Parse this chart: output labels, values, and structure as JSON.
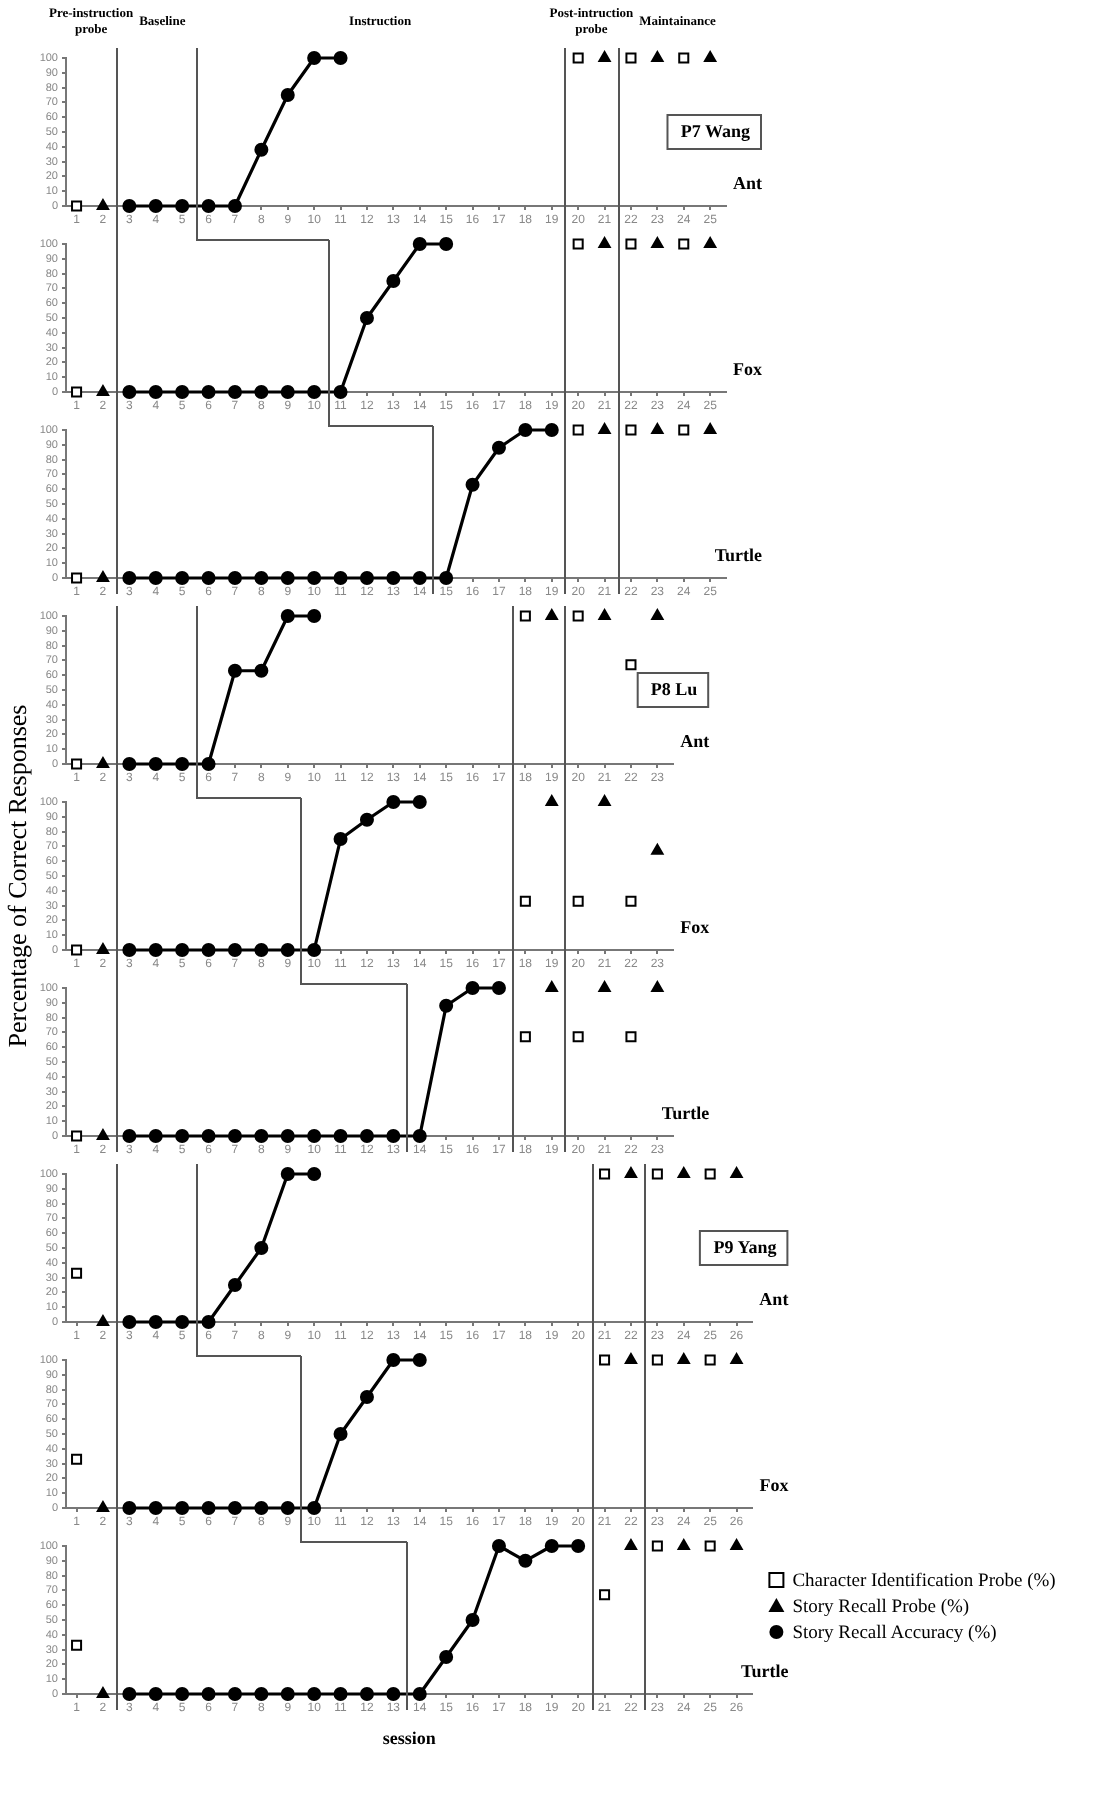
{
  "chart_data": [
    {
      "type": "line",
      "title": "P7 Wang",
      "xlim": [
        0.6,
        25.6
      ],
      "xticks": [
        1,
        2,
        3,
        4,
        5,
        6,
        7,
        8,
        9,
        10,
        11,
        12,
        13,
        14,
        15,
        16,
        17,
        18,
        19,
        20,
        21,
        22,
        23,
        24,
        25
      ],
      "ylim": [
        0,
        100
      ],
      "yticks": [
        0,
        10,
        20,
        30,
        40,
        50,
        60,
        70,
        80,
        90,
        100
      ],
      "grid": false,
      "ref_lines": [
        {
          "axis": "x",
          "value": 2.5
        },
        {
          "axis": "x",
          "value": 5.5
        },
        {
          "axis": "x",
          "value": 19.5
        },
        {
          "axis": "x",
          "value": 21.5
        }
      ],
      "annotations": [
        "Pre-instruction probe",
        "Baseline",
        "Instruction",
        "Post-intruction probe",
        "Maintainance",
        "Ant"
      ],
      "series": [
        {
          "type": "line",
          "marker": "circle",
          "color": "#000000",
          "x": [
            3,
            4,
            5,
            6,
            7,
            8,
            9,
            10,
            11
          ],
          "values": [
            0,
            0,
            0,
            0,
            0,
            38,
            75,
            100,
            100
          ]
        },
        {
          "type": "scatter",
          "marker": "square",
          "color": "#000000",
          "x": [
            1,
            20,
            22,
            24
          ],
          "values": [
            0,
            100,
            100,
            100
          ]
        },
        {
          "type": "scatter",
          "marker": "triangle",
          "color": "#000000",
          "x": [
            2,
            21,
            23,
            25
          ],
          "values": [
            0,
            100,
            100,
            100
          ]
        }
      ]
    },
    {
      "type": "line",
      "xlim": [
        0.6,
        25.6
      ],
      "xticks": [
        1,
        2,
        3,
        4,
        5,
        6,
        7,
        8,
        9,
        10,
        11,
        12,
        13,
        14,
        15,
        16,
        17,
        18,
        19,
        20,
        21,
        22,
        23,
        24,
        25
      ],
      "ylim": [
        0,
        100
      ],
      "yticks": [
        0,
        10,
        20,
        30,
        40,
        50,
        60,
        70,
        80,
        90,
        100
      ],
      "grid": false,
      "ref_lines": [
        {
          "axis": "x",
          "value": 2.5
        },
        {
          "axis": "x",
          "value": 10.5
        },
        {
          "axis": "x",
          "value": 19.5
        },
        {
          "axis": "x",
          "value": 21.5
        }
      ],
      "annotations": [
        "Fox"
      ],
      "series": [
        {
          "type": "line",
          "marker": "circle",
          "color": "#000000",
          "x": [
            3,
            4,
            5,
            6,
            7,
            8,
            9,
            10,
            11,
            12,
            13,
            14,
            15
          ],
          "values": [
            0,
            0,
            0,
            0,
            0,
            0,
            0,
            0,
            0,
            50,
            75,
            100,
            100
          ]
        },
        {
          "type": "scatter",
          "marker": "square",
          "color": "#000000",
          "x": [
            1,
            20,
            22,
            24
          ],
          "values": [
            0,
            100,
            100,
            100
          ]
        },
        {
          "type": "scatter",
          "marker": "triangle",
          "color": "#000000",
          "x": [
            2,
            21,
            23,
            25
          ],
          "values": [
            0,
            100,
            100,
            100
          ]
        }
      ]
    },
    {
      "type": "line",
      "xlim": [
        0.6,
        25.6
      ],
      "xticks": [
        1,
        2,
        3,
        4,
        5,
        6,
        7,
        8,
        9,
        10,
        11,
        12,
        13,
        14,
        15,
        16,
        17,
        18,
        19,
        20,
        21,
        22,
        23,
        24,
        25
      ],
      "ylim": [
        0,
        100
      ],
      "yticks": [
        0,
        10,
        20,
        30,
        40,
        50,
        60,
        70,
        80,
        90,
        100
      ],
      "grid": false,
      "ref_lines": [
        {
          "axis": "x",
          "value": 2.5
        },
        {
          "axis": "x",
          "value": 14.5
        },
        {
          "axis": "x",
          "value": 19.5
        },
        {
          "axis": "x",
          "value": 21.5
        }
      ],
      "annotations": [
        "Turtle"
      ],
      "series": [
        {
          "type": "line",
          "marker": "circle",
          "color": "#000000",
          "x": [
            3,
            4,
            5,
            6,
            7,
            8,
            9,
            10,
            11,
            12,
            13,
            14,
            15,
            16,
            17,
            18,
            19
          ],
          "values": [
            0,
            0,
            0,
            0,
            0,
            0,
            0,
            0,
            0,
            0,
            0,
            0,
            0,
            63,
            88,
            100,
            100
          ]
        },
        {
          "type": "scatter",
          "marker": "square",
          "color": "#000000",
          "x": [
            1,
            20,
            22,
            24
          ],
          "values": [
            0,
            100,
            100,
            100
          ]
        },
        {
          "type": "scatter",
          "marker": "triangle",
          "color": "#000000",
          "x": [
            2,
            21,
            23,
            25
          ],
          "values": [
            0,
            100,
            100,
            100
          ]
        }
      ]
    },
    {
      "type": "line",
      "title": "P8 Lu",
      "xlim": [
        0.6,
        23.6
      ],
      "xticks": [
        1,
        2,
        3,
        4,
        5,
        6,
        7,
        8,
        9,
        10,
        11,
        12,
        13,
        14,
        15,
        16,
        17,
        18,
        19,
        20,
        21,
        22,
        23
      ],
      "ylim": [
        0,
        100
      ],
      "yticks": [
        0,
        10,
        20,
        30,
        40,
        50,
        60,
        70,
        80,
        90,
        100
      ],
      "grid": false,
      "ref_lines": [
        {
          "axis": "x",
          "value": 2.5
        },
        {
          "axis": "x",
          "value": 5.5
        },
        {
          "axis": "x",
          "value": 17.5
        },
        {
          "axis": "x",
          "value": 19.5
        }
      ],
      "annotations": [
        "Ant"
      ],
      "series": [
        {
          "type": "line",
          "marker": "circle",
          "color": "#000000",
          "x": [
            3,
            4,
            5,
            6,
            7,
            8,
            9,
            10
          ],
          "values": [
            0,
            0,
            0,
            0,
            63,
            63,
            100,
            100
          ]
        },
        {
          "type": "scatter",
          "marker": "square",
          "color": "#000000",
          "x": [
            1,
            18,
            20,
            22
          ],
          "values": [
            0,
            100,
            100,
            67
          ]
        },
        {
          "type": "scatter",
          "marker": "triangle",
          "color": "#000000",
          "x": [
            2,
            19,
            21,
            23
          ],
          "values": [
            0,
            100,
            100,
            100
          ]
        }
      ]
    },
    {
      "type": "line",
      "ylabel": "Percentage of Correct Responses",
      "xlim": [
        0.6,
        23.6
      ],
      "xticks": [
        1,
        2,
        3,
        4,
        5,
        6,
        7,
        8,
        9,
        10,
        11,
        12,
        13,
        14,
        15,
        16,
        17,
        18,
        19,
        20,
        21,
        22,
        23
      ],
      "ylim": [
        0,
        100
      ],
      "yticks": [
        0,
        10,
        20,
        30,
        40,
        50,
        60,
        70,
        80,
        90,
        100
      ],
      "grid": false,
      "ref_lines": [
        {
          "axis": "x",
          "value": 2.5
        },
        {
          "axis": "x",
          "value": 9.5
        },
        {
          "axis": "x",
          "value": 17.5
        },
        {
          "axis": "x",
          "value": 19.5
        }
      ],
      "annotations": [
        "Fox"
      ],
      "series": [
        {
          "type": "line",
          "marker": "circle",
          "color": "#000000",
          "x": [
            3,
            4,
            5,
            6,
            7,
            8,
            9,
            10,
            11,
            12,
            13,
            14
          ],
          "values": [
            0,
            0,
            0,
            0,
            0,
            0,
            0,
            0,
            75,
            88,
            100,
            100
          ]
        },
        {
          "type": "scatter",
          "marker": "square",
          "color": "#000000",
          "x": [
            1,
            18,
            20,
            22
          ],
          "values": [
            0,
            33,
            33,
            33
          ]
        },
        {
          "type": "scatter",
          "marker": "triangle",
          "color": "#000000",
          "x": [
            2,
            19,
            21,
            23
          ],
          "values": [
            0,
            100,
            100,
            67
          ]
        }
      ]
    },
    {
      "type": "line",
      "xlim": [
        0.6,
        23.6
      ],
      "xticks": [
        1,
        2,
        3,
        4,
        5,
        6,
        7,
        8,
        9,
        10,
        11,
        12,
        13,
        14,
        15,
        16,
        17,
        18,
        19,
        20,
        21,
        22,
        23
      ],
      "ylim": [
        0,
        100
      ],
      "yticks": [
        0,
        10,
        20,
        30,
        40,
        50,
        60,
        70,
        80,
        90,
        100
      ],
      "grid": false,
      "ref_lines": [
        {
          "axis": "x",
          "value": 2.5
        },
        {
          "axis": "x",
          "value": 13.5
        },
        {
          "axis": "x",
          "value": 17.5
        },
        {
          "axis": "x",
          "value": 19.5
        }
      ],
      "annotations": [
        "Turtle"
      ],
      "series": [
        {
          "type": "line",
          "marker": "circle",
          "color": "#000000",
          "x": [
            3,
            4,
            5,
            6,
            7,
            8,
            9,
            10,
            11,
            12,
            13,
            14,
            15,
            16,
            17
          ],
          "values": [
            0,
            0,
            0,
            0,
            0,
            0,
            0,
            0,
            0,
            0,
            0,
            0,
            88,
            100,
            100
          ]
        },
        {
          "type": "scatter",
          "marker": "square",
          "color": "#000000",
          "x": [
            1,
            18,
            20,
            22
          ],
          "values": [
            0,
            67,
            67,
            67
          ]
        },
        {
          "type": "scatter",
          "marker": "triangle",
          "color": "#000000",
          "x": [
            2,
            19,
            21,
            23
          ],
          "values": [
            0,
            100,
            100,
            100
          ]
        }
      ]
    },
    {
      "type": "line",
      "title": "P9 Yang",
      "xlim": [
        0.6,
        26.6
      ],
      "xticks": [
        1,
        2,
        3,
        4,
        5,
        6,
        7,
        8,
        9,
        10,
        11,
        12,
        13,
        14,
        15,
        16,
        17,
        18,
        19,
        20,
        21,
        22,
        23,
        24,
        25,
        26
      ],
      "ylim": [
        0,
        100
      ],
      "yticks": [
        0,
        10,
        20,
        30,
        40,
        50,
        60,
        70,
        80,
        90,
        100
      ],
      "grid": false,
      "ref_lines": [
        {
          "axis": "x",
          "value": 2.5
        },
        {
          "axis": "x",
          "value": 5.5
        },
        {
          "axis": "x",
          "value": 20.5
        },
        {
          "axis": "x",
          "value": 22.5
        }
      ],
      "annotations": [
        "Ant"
      ],
      "series": [
        {
          "type": "line",
          "marker": "circle",
          "color": "#000000",
          "x": [
            3,
            4,
            5,
            6,
            7,
            8,
            9,
            10
          ],
          "values": [
            0,
            0,
            0,
            0,
            25,
            50,
            100,
            100
          ]
        },
        {
          "type": "scatter",
          "marker": "square",
          "color": "#000000",
          "x": [
            1,
            21,
            23,
            25
          ],
          "values": [
            33,
            100,
            100,
            100
          ]
        },
        {
          "type": "scatter",
          "marker": "triangle",
          "color": "#000000",
          "x": [
            2,
            22,
            24,
            26
          ],
          "values": [
            0,
            100,
            100,
            100
          ]
        }
      ]
    },
    {
      "type": "line",
      "xlim": [
        0.6,
        26.6
      ],
      "xticks": [
        1,
        2,
        3,
        4,
        5,
        6,
        7,
        8,
        9,
        10,
        11,
        12,
        13,
        14,
        15,
        16,
        17,
        18,
        19,
        20,
        21,
        22,
        23,
        24,
        25,
        26
      ],
      "ylim": [
        0,
        100
      ],
      "yticks": [
        0,
        10,
        20,
        30,
        40,
        50,
        60,
        70,
        80,
        90,
        100
      ],
      "grid": false,
      "ref_lines": [
        {
          "axis": "x",
          "value": 2.5
        },
        {
          "axis": "x",
          "value": 9.5
        },
        {
          "axis": "x",
          "value": 20.5
        },
        {
          "axis": "x",
          "value": 22.5
        }
      ],
      "annotations": [
        "Fox"
      ],
      "series": [
        {
          "type": "line",
          "marker": "circle",
          "color": "#000000",
          "x": [
            3,
            4,
            5,
            6,
            7,
            8,
            9,
            10,
            11,
            12,
            13,
            14
          ],
          "values": [
            0,
            0,
            0,
            0,
            0,
            0,
            0,
            0,
            50,
            75,
            100,
            100
          ]
        },
        {
          "type": "scatter",
          "marker": "square",
          "color": "#000000",
          "x": [
            1,
            21,
            23,
            25
          ],
          "values": [
            33,
            100,
            100,
            100
          ]
        },
        {
          "type": "scatter",
          "marker": "triangle",
          "color": "#000000",
          "x": [
            2,
            22,
            24,
            26
          ],
          "values": [
            0,
            100,
            100,
            100
          ]
        }
      ]
    },
    {
      "type": "line",
      "xlabel": "session",
      "legend": "right",
      "xlim": [
        0.6,
        26.6
      ],
      "xticks": [
        1,
        2,
        3,
        4,
        5,
        6,
        7,
        8,
        9,
        10,
        11,
        12,
        13,
        14,
        15,
        16,
        17,
        18,
        19,
        20,
        21,
        22,
        23,
        24,
        25,
        26
      ],
      "ylim": [
        0,
        100
      ],
      "yticks": [
        0,
        10,
        20,
        30,
        40,
        50,
        60,
        70,
        80,
        90,
        100
      ],
      "grid": false,
      "ref_lines": [
        {
          "axis": "x",
          "value": 2.5
        },
        {
          "axis": "x",
          "value": 13.5
        },
        {
          "axis": "x",
          "value": 20.5
        },
        {
          "axis": "x",
          "value": 22.5
        }
      ],
      "annotations": [
        "Turtle"
      ],
      "series": [
        {
          "type": "scatter",
          "name": "Character Identification Probe (%)",
          "marker": "square",
          "color": "#000000",
          "x": [
            1,
            21,
            23,
            25
          ],
          "values": [
            33,
            67,
            100,
            100
          ]
        },
        {
          "type": "scatter",
          "name": "Story Recall Probe (%)",
          "marker": "triangle",
          "color": "#000000",
          "x": [
            2,
            22,
            24,
            26
          ],
          "values": [
            0,
            100,
            100,
            100
          ]
        },
        {
          "type": "line",
          "name": "Story Recall Accuracy (%)",
          "marker": "circle",
          "color": "#000000",
          "x": [
            3,
            4,
            5,
            6,
            7,
            8,
            9,
            10,
            11,
            12,
            13,
            14,
            15,
            16,
            17,
            18,
            19,
            20
          ],
          "values": [
            0,
            0,
            0,
            0,
            0,
            0,
            0,
            0,
            0,
            0,
            0,
            0,
            25,
            50,
            100,
            90,
            100,
            100
          ]
        }
      ]
    }
  ]
}
